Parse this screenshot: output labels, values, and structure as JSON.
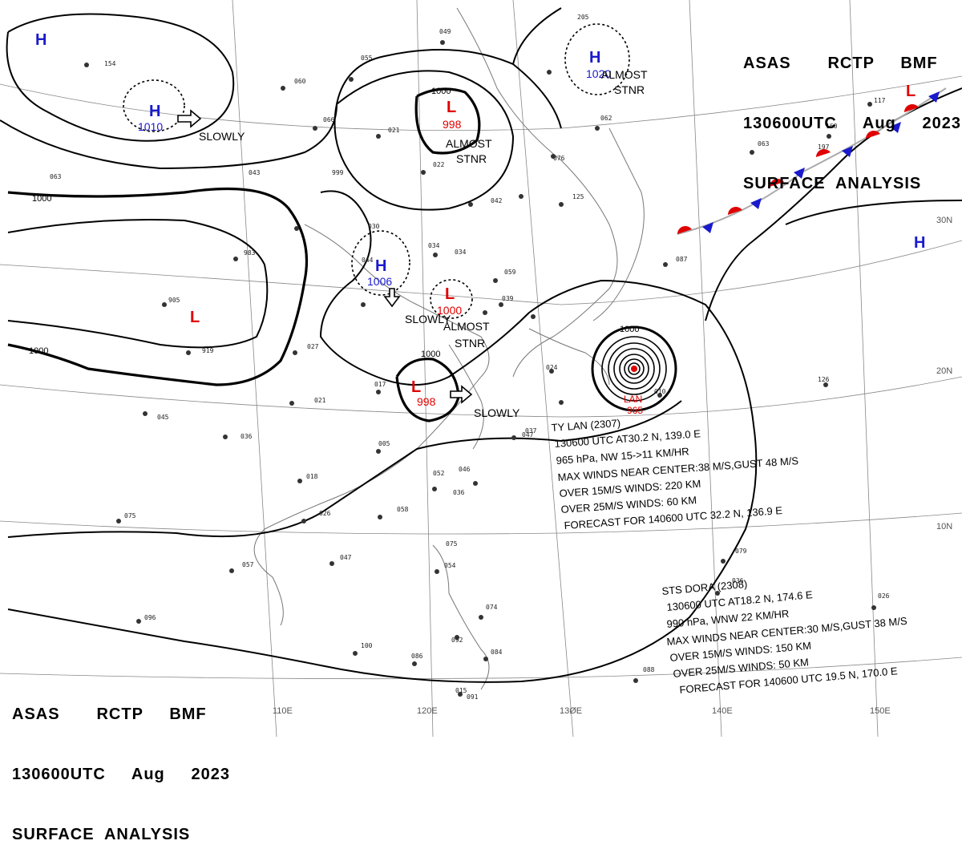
{
  "header": {
    "line1": "ASAS       RCTP     BMF",
    "line2": "130600UTC     Aug     2023",
    "line3": "SURFACE  ANALYSIS"
  },
  "footer": {
    "line1": "ASAS       RCTP     BMF",
    "line2": "130600UTC     Aug     2023",
    "line3": "SURFACE  ANALYSIS"
  },
  "grid": {
    "lat_labels": [
      "30N",
      "20N",
      "10N"
    ],
    "lon_labels": [
      "110E",
      "120E",
      "13ØE",
      "140E",
      "150E"
    ]
  },
  "isobars": [
    "1000",
    "1000",
    "1000",
    "1000",
    "1000"
  ],
  "centers": [
    {
      "id": "h-nw",
      "type": "H",
      "color": "#1a1acc"
    },
    {
      "id": "h-west",
      "type": "H",
      "value": "1010",
      "color": "#1a1acc"
    },
    {
      "id": "l-north",
      "type": "L",
      "value": "998",
      "color": "#e00000"
    },
    {
      "id": "h-japan",
      "type": "H",
      "value": "1020",
      "color": "#1a1acc"
    },
    {
      "id": "l-tibet",
      "type": "L",
      "color": "#e00000"
    },
    {
      "id": "h-mid",
      "type": "H",
      "value": "1006",
      "color": "#1a1acc"
    },
    {
      "id": "l-mid",
      "type": "L",
      "value": "1000",
      "color": "#e00000"
    },
    {
      "id": "l-south",
      "type": "L",
      "value": "998",
      "color": "#e00000"
    },
    {
      "id": "l-ne",
      "type": "L",
      "color": "#e00000"
    },
    {
      "id": "h-east",
      "type": "H",
      "color": "#1a1acc"
    }
  ],
  "annotations": {
    "slowly_1": "SLOWLY",
    "slowly_2": "SLOWLY",
    "slowly_3": "SLOWLY",
    "almost_stnr_1a": "ALMOST",
    "almost_stnr_1b": "STNR",
    "almost_stnr_2a": "ALMOST",
    "almost_stnr_2b": "STNR",
    "almost_stnr_3a": "ALMOST",
    "almost_stnr_3b": "STNR"
  },
  "typhoon": {
    "name": "LAN",
    "pressure": "965",
    "isobar": "1000",
    "lines": [
      "TY  LAN  (2307)",
      "130600 UTC  AT30.2 N, 139.0 E",
      "965 hPa, NW  15->11 KM/HR",
      "MAX WINDS NEAR CENTER:38 M/S,GUST 48 M/S",
      "OVER 15M/S WINDS: 220 KM",
      "OVER 25M/S WINDS: 60 KM",
      "FORECAST FOR 140600 UTC 32.2 N, 136.9 E"
    ]
  },
  "storm": {
    "lines": [
      "STS  DORA  (2308)",
      "130600 UTC  AT18.2 N, 174.6 E",
      "990 hPa, WNW  22 KM/HR",
      "MAX WINDS NEAR CENTER:30 M/S,GUST 38 M/S",
      "OVER 15M/S WINDS: 150 KM",
      "OVER 25M/S WINDS: 50 KM",
      "FORECAST FOR 140600 UTC 19.5 N, 170.0 E"
    ]
  },
  "stations": [
    "049",
    "055",
    "060",
    "066",
    "021",
    "022",
    "999",
    "043",
    "063",
    "983",
    "030",
    "044",
    "034",
    "905",
    "919",
    "027",
    "021",
    "017",
    "005",
    "036",
    "046",
    "052",
    "036",
    "018",
    "026",
    "058",
    "075",
    "047",
    "057",
    "045",
    "096",
    "100",
    "086",
    "091",
    "084",
    "054",
    "074",
    "092",
    "063",
    "087",
    "010",
    "024",
    "047",
    "125",
    "076",
    "059",
    "039",
    "034",
    "075",
    "015",
    "088",
    "079",
    "205",
    "062",
    "160",
    "197",
    "117",
    "154",
    "126",
    "026",
    "036",
    "037",
    "042"
  ]
}
